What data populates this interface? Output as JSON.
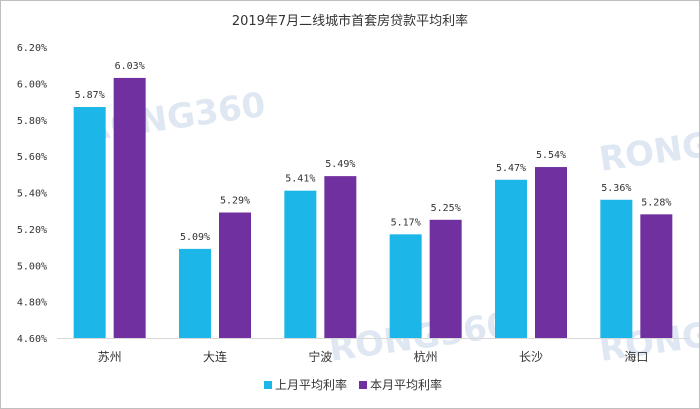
{
  "chart_data": {
    "type": "bar",
    "title": "2019年7月二线城市首套房贷款平均利率",
    "categories": [
      "苏州",
      "大连",
      "宁波",
      "杭州",
      "长沙",
      "海口"
    ],
    "series": [
      {
        "name": "上月平均利率",
        "color": "#1cb6e8",
        "values": [
          5.87,
          5.09,
          5.41,
          5.17,
          5.47,
          5.36
        ]
      },
      {
        "name": "本月平均利率",
        "color": "#7030a0",
        "values": [
          6.03,
          5.29,
          5.49,
          5.25,
          5.54,
          5.28
        ]
      }
    ],
    "data_labels": [
      [
        "5.87%",
        "5.09%",
        "5.41%",
        "5.17%",
        "5.47%",
        "5.36%"
      ],
      [
        "6.03%",
        "5.29%",
        "5.49%",
        "5.25%",
        "5.54%",
        "5.28%"
      ]
    ],
    "y_ticks": [
      "4.60%",
      "4.80%",
      "5.00%",
      "5.20%",
      "5.40%",
      "5.60%",
      "5.80%",
      "6.00%",
      "6.20%"
    ],
    "ylim": [
      4.6,
      6.2
    ],
    "grid": false,
    "legend_position": "bottom",
    "watermark": "RONG360"
  }
}
